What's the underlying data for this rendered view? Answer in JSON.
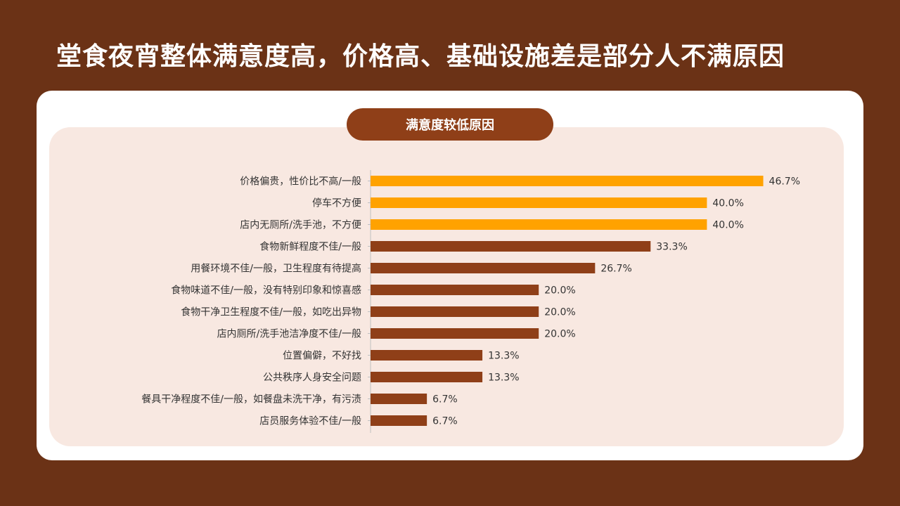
{
  "title": "堂食夜宵整体满意度高，价格高、基础设施差是部分人不满原因",
  "section_label": "满意度较低原因",
  "colors": {
    "background": "#6b3216",
    "bar_highlight": "#ffa200",
    "bar_normal": "#8f3f18",
    "panel": "#f8e8e1",
    "pill": "#8f3f18"
  },
  "chart_data": {
    "type": "bar",
    "orientation": "horizontal",
    "title": "满意度较低原因",
    "categories": [
      "价格偏贵，性价比不高/一般",
      "停车不方便",
      "店内无厕所/洗手池，不方便",
      "食物新鲜程度不佳/一般",
      "用餐环境不佳/一般，卫生程度有待提高",
      "食物味道不佳/一般，没有特别印象和惊喜感",
      "食物干净卫生程度不佳/一般，如吃出异物",
      "店内厕所/洗手池洁净度不佳/一般",
      "位置偏僻，不好找",
      "公共秩序人身安全问题",
      "餐具干净程度不佳/一般，如餐盘未洗干净，有污渍",
      "店员服务体验不佳/一般"
    ],
    "values": [
      46.7,
      40.0,
      40.0,
      33.3,
      26.7,
      20.0,
      20.0,
      20.0,
      13.3,
      13.3,
      6.7,
      6.7
    ],
    "value_labels": [
      "46.7%",
      "40.0%",
      "40.0%",
      "33.3%",
      "26.7%",
      "20.0%",
      "20.0%",
      "20.0%",
      "13.3%",
      "13.3%",
      "6.7%",
      "6.7%"
    ],
    "highlight": [
      true,
      true,
      true,
      false,
      false,
      false,
      false,
      false,
      false,
      false,
      false,
      false
    ],
    "xlim": [
      0,
      50
    ],
    "grid": false,
    "legend": "none"
  }
}
